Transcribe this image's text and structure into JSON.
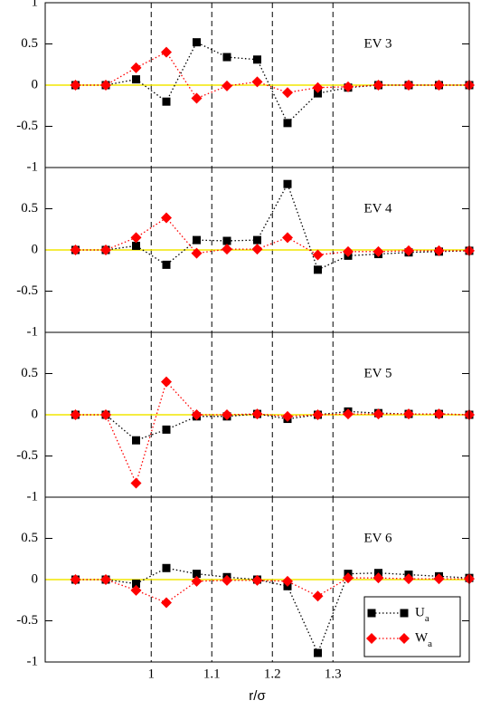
{
  "chart_data": [
    {
      "type": "line",
      "title": "EV 3",
      "x": [
        0.875,
        0.925,
        0.975,
        1.025,
        1.075,
        1.125,
        1.175,
        1.225,
        1.275,
        1.325,
        1.375,
        1.425,
        1.475,
        1.525
      ],
      "series": [
        {
          "color": "#000000",
          "marker": "square",
          "values": [
            0,
            0,
            0.07,
            -0.2,
            0.52,
            0.34,
            0.31,
            -0.46,
            -0.1,
            -0.03,
            0,
            0,
            0,
            0
          ]
        },
        {
          "color": "#ff0000",
          "marker": "diamond",
          "values": [
            0,
            0,
            0.21,
            0.4,
            -0.16,
            -0.01,
            0.04,
            -0.09,
            -0.03,
            -0.02,
            0,
            0,
            0,
            0
          ]
        }
      ],
      "xlim": [
        0.825,
        1.525
      ],
      "ylim": [
        -1,
        1
      ],
      "yticks": [
        1,
        0.5,
        0,
        -0.5,
        -1
      ],
      "xticks": [
        1,
        1.1,
        1.2,
        1.3
      ],
      "zero_line": "#f2e600"
    },
    {
      "type": "line",
      "title": "EV 4",
      "x": [
        0.875,
        0.925,
        0.975,
        1.025,
        1.075,
        1.125,
        1.175,
        1.225,
        1.275,
        1.325,
        1.375,
        1.425,
        1.475,
        1.525
      ],
      "series": [
        {
          "color": "#000000",
          "marker": "square",
          "values": [
            0,
            0,
            0.05,
            -0.18,
            0.12,
            0.11,
            0.12,
            0.8,
            -0.24,
            -0.07,
            -0.05,
            -0.03,
            -0.02,
            -0.01
          ]
        },
        {
          "color": "#ff0000",
          "marker": "diamond",
          "values": [
            0,
            0,
            0.15,
            0.39,
            -0.04,
            0.01,
            0.01,
            0.15,
            -0.06,
            -0.02,
            -0.02,
            -0.01,
            -0.01,
            -0.01
          ]
        }
      ],
      "xlim": [
        0.825,
        1.525
      ],
      "ylim": [
        -1,
        1
      ],
      "yticks": [
        0.5,
        0,
        -0.5,
        -1
      ],
      "xticks": [
        1,
        1.1,
        1.2,
        1.3
      ],
      "zero_line": "#f2e600"
    },
    {
      "type": "line",
      "title": "EV 5",
      "x": [
        0.875,
        0.925,
        0.975,
        1.025,
        1.075,
        1.125,
        1.175,
        1.225,
        1.275,
        1.325,
        1.375,
        1.425,
        1.475,
        1.525
      ],
      "series": [
        {
          "color": "#000000",
          "marker": "square",
          "values": [
            0,
            0,
            -0.31,
            -0.18,
            -0.02,
            -0.02,
            0.01,
            -0.05,
            0,
            0.04,
            0.02,
            0.01,
            0.01,
            0
          ]
        },
        {
          "color": "#ff0000",
          "marker": "diamond",
          "values": [
            0,
            0,
            -0.83,
            0.4,
            0,
            0,
            0.01,
            -0.02,
            0,
            0.01,
            0.01,
            0.01,
            0.01,
            0
          ]
        }
      ],
      "xlim": [
        0.825,
        1.525
      ],
      "ylim": [
        -1,
        1
      ],
      "yticks": [
        0.5,
        0,
        -0.5,
        -1
      ],
      "xticks": [
        1,
        1.1,
        1.2,
        1.3
      ],
      "zero_line": "#f2e600"
    },
    {
      "type": "line",
      "title": "EV 6",
      "x": [
        0.875,
        0.925,
        0.975,
        1.025,
        1.075,
        1.125,
        1.175,
        1.225,
        1.275,
        1.325,
        1.375,
        1.425,
        1.475,
        1.525
      ],
      "series": [
        {
          "name": "U_a",
          "color": "#000000",
          "marker": "square",
          "values": [
            0,
            0,
            -0.05,
            0.14,
            0.07,
            0.03,
            0,
            -0.08,
            -0.89,
            0.07,
            0.08,
            0.06,
            0.04,
            0.02
          ]
        },
        {
          "name": "W_a",
          "color": "#ff0000",
          "marker": "diamond",
          "values": [
            0,
            0,
            -0.13,
            -0.28,
            -0.02,
            -0.01,
            -0.01,
            -0.02,
            -0.2,
            0.02,
            0.02,
            0.01,
            0.01,
            0.01
          ]
        }
      ],
      "xlim": [
        0.825,
        1.525
      ],
      "ylim": [
        -1,
        1
      ],
      "yticks": [
        0.5,
        0,
        -0.5,
        -1
      ],
      "xticks": [
        1,
        1.1,
        1.2,
        1.3
      ],
      "xticklabels": true,
      "xlabel": "r/σ",
      "zero_line": "#f2e600",
      "legend": "lower right"
    }
  ]
}
